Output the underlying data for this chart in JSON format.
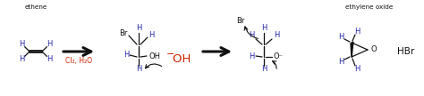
{
  "background": "#ffffff",
  "blue": "#2222AA",
  "red": "#CC2200",
  "black": "#111111",
  "label_ethene": "ethene",
  "label_ethylene_oxide": "ethylene oxide",
  "reagent1": "Cl₂, H₂O",
  "product_hbr": "HBr"
}
